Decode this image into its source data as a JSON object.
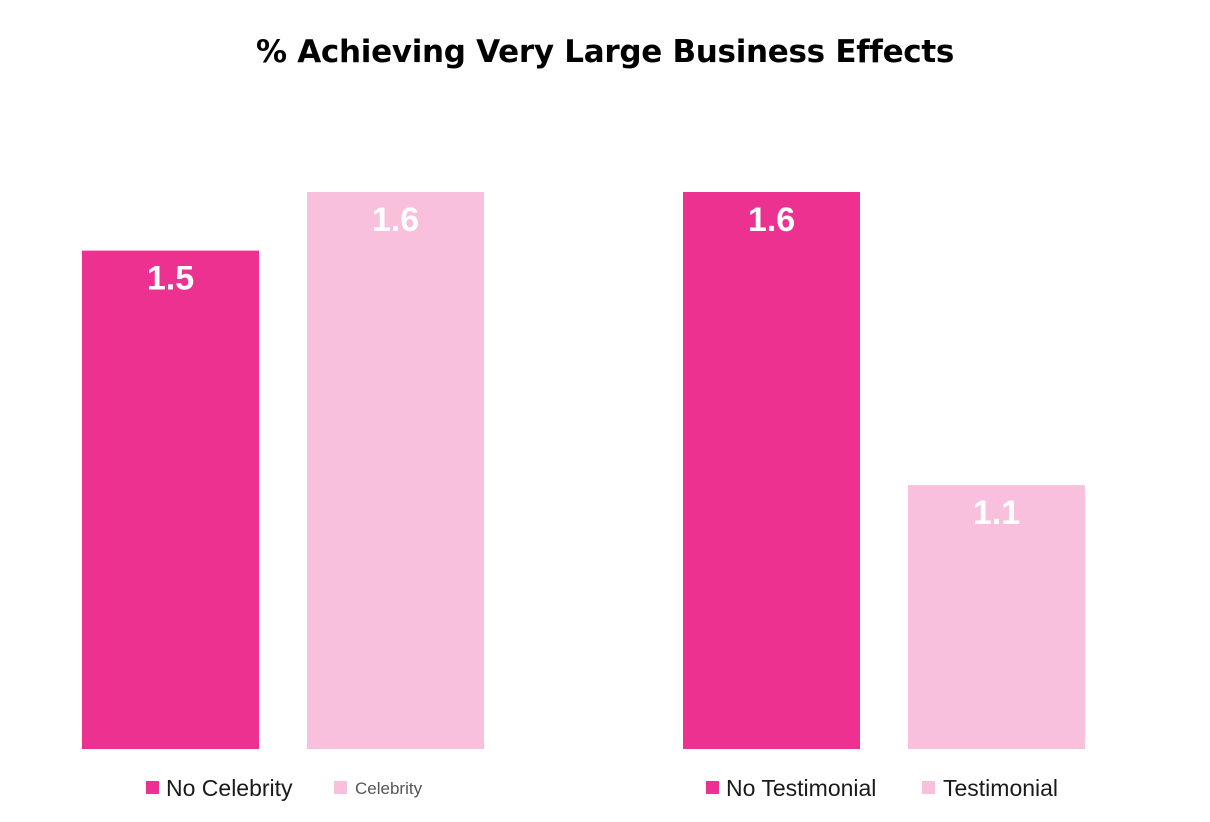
{
  "colors": {
    "dark": "#ED3191",
    "light": "#F9C0DD"
  },
  "chart_data": {
    "type": "bar",
    "title": "% Achieving Very Large Business Effects",
    "ylim": [
      0.65,
      1.6
    ],
    "grid": false,
    "groups": [
      {
        "series": [
          {
            "name": "No Celebrity",
            "value": 1.5,
            "label": "1.5",
            "color": "dark"
          },
          {
            "name": "Celebrity",
            "value": 1.6,
            "label": "1.6",
            "color": "light"
          }
        ]
      },
      {
        "series": [
          {
            "name": "No Testimonial",
            "value": 1.6,
            "label": "1.6",
            "color": "dark"
          },
          {
            "name": "Testimonial",
            "value": 1.1,
            "label": "1.1",
            "color": "light"
          }
        ]
      }
    ]
  }
}
